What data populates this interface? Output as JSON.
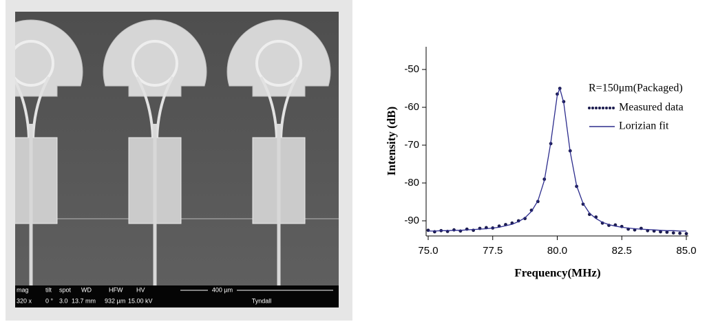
{
  "sem_image": {
    "databar": {
      "headers": [
        "mag",
        "tilt",
        "spot",
        "WD",
        "HFW",
        "HV"
      ],
      "values": [
        "320 x",
        "0 °",
        "3.0",
        "13.7 mm",
        "932 µm",
        "15.00 kV"
      ],
      "scale": "400 µm",
      "lab": "Tyndall"
    }
  },
  "chart_data": {
    "type": "line",
    "x_label": "Frequency(MHz)",
    "y_label": "Intensity (dB)",
    "annotation": "R=150μm(Packaged)",
    "x": [
      75,
      75.25,
      75.5,
      75.75,
      76,
      76.25,
      76.5,
      76.75,
      77,
      77.25,
      77.5,
      77.75,
      78,
      78.25,
      78.5,
      78.75,
      79,
      79.25,
      79.5,
      79.75,
      80,
      80.1,
      80.25,
      80.5,
      80.75,
      81,
      81.25,
      81.5,
      81.75,
      82,
      82.25,
      82.5,
      82.75,
      83,
      83.25,
      83.5,
      83.75,
      84,
      84.25,
      84.5,
      84.75,
      85
    ],
    "series": [
      {
        "name": "Measured data",
        "color": "#1c1c4e",
        "style": "dotted",
        "values": [
          -92.5,
          -92.9,
          -92.6,
          -92.8,
          -92.4,
          -92.7,
          -92.2,
          -92.5,
          -92.0,
          -91.8,
          -91.9,
          -91.4,
          -91.0,
          -90.6,
          -90.0,
          -89.4,
          -87.2,
          -84.9,
          -79.0,
          -69.6,
          -56.5,
          -55.0,
          -58.5,
          -71.5,
          -80.9,
          -85.6,
          -88.3,
          -89.0,
          -90.6,
          -91.2,
          -91.1,
          -91.5,
          -92.2,
          -92.4,
          -92.0,
          -92.6,
          -92.7,
          -92.9,
          -93.0,
          -93.2,
          -93.3,
          -93.4
        ]
      },
      {
        "name": "Lorizian fit",
        "color": "#2b2b8c",
        "style": "solid",
        "values": [
          -92.7,
          -92.7,
          -92.6,
          -92.6,
          -92.5,
          -92.5,
          -92.4,
          -92.3,
          -92.2,
          -92.1,
          -91.9,
          -91.7,
          -91.3,
          -90.9,
          -90.2,
          -89.2,
          -87.5,
          -84.7,
          -79.3,
          -69.3,
          -56.8,
          -55.0,
          -58.8,
          -71.8,
          -80.7,
          -85.4,
          -88.0,
          -89.4,
          -90.4,
          -91.0,
          -91.4,
          -91.7,
          -91.9,
          -92.1,
          -92.2,
          -92.3,
          -92.4,
          -92.5,
          -92.6,
          -92.6,
          -92.7,
          -92.7
        ]
      }
    ],
    "xlim": [
      75,
      85
    ],
    "ylim": [
      -94,
      -44
    ],
    "xticks": [
      {
        "value": 75,
        "label": "75.0"
      },
      {
        "value": 77.5,
        "label": "77.5"
      },
      {
        "value": 80,
        "label": "80.0"
      },
      {
        "value": 82.5,
        "label": "82.5"
      },
      {
        "value": 85,
        "label": "85.0"
      }
    ],
    "yticks": [
      -50,
      -60,
      -70,
      -80,
      -90
    ]
  }
}
